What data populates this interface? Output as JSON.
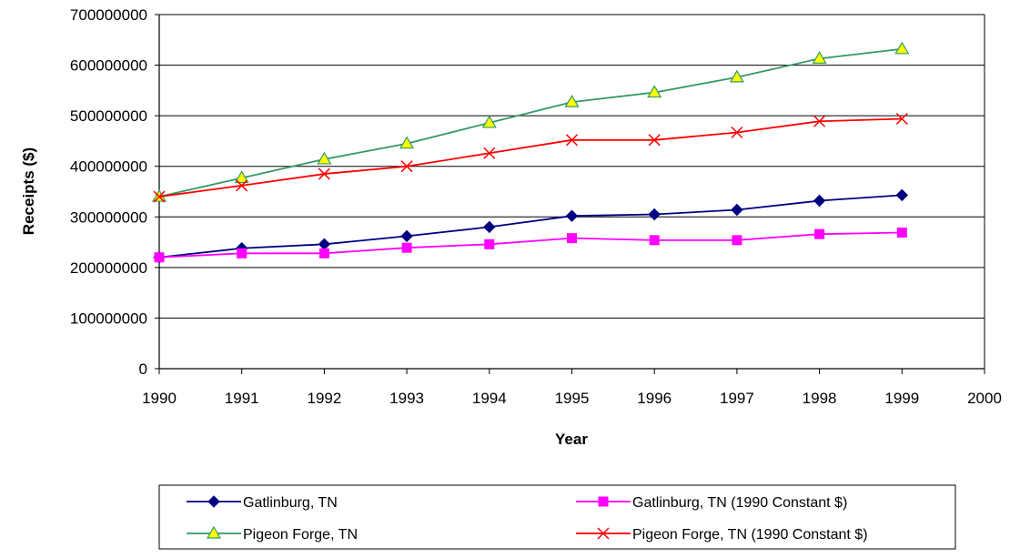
{
  "chart_data": {
    "type": "line",
    "title": "",
    "xlabel": "Year",
    "ylabel": "Receipts ($)",
    "xlim": [
      1990,
      2000
    ],
    "ylim": [
      0,
      700000000
    ],
    "x_ticks": [
      "1990",
      "1991",
      "1992",
      "1993",
      "1994",
      "1995",
      "1996",
      "1997",
      "1998",
      "1999",
      "2000"
    ],
    "y_ticks": [
      "0",
      "100000000",
      "200000000",
      "300000000",
      "400000000",
      "500000000",
      "600000000",
      "700000000"
    ],
    "grid": "horizontal",
    "legend_position": "bottom",
    "x": [
      1990,
      1991,
      1992,
      1993,
      1994,
      1995,
      1996,
      1997,
      1998,
      1999
    ],
    "series": [
      {
        "name": "Gatlinburg, TN",
        "color": "#000080",
        "marker": "diamond",
        "values": [
          220000000,
          238000000,
          246000000,
          262000000,
          280000000,
          302000000,
          305000000,
          314000000,
          332000000,
          343000000
        ]
      },
      {
        "name": "Gatlinburg, TN (1990 Constant $)",
        "color": "#FF00FF",
        "marker": "square",
        "values": [
          220000000,
          228000000,
          228000000,
          239000000,
          246000000,
          258000000,
          254000000,
          254000000,
          266000000,
          269000000
        ]
      },
      {
        "name": "Pigeon Forge, TN",
        "color": "#339966",
        "marker": "triangle",
        "marker_fill": "#FFFF00",
        "values": [
          340000000,
          377000000,
          414000000,
          445000000,
          486000000,
          527000000,
          546000000,
          576000000,
          613000000,
          632000000
        ]
      },
      {
        "name": "Pigeon Forge, TN (1990 Constant $)",
        "color": "#FF0000",
        "marker": "x",
        "values": [
          340000000,
          362000000,
          385000000,
          400000000,
          426000000,
          452000000,
          452000000,
          467000000,
          489000000,
          494000000
        ]
      }
    ]
  }
}
